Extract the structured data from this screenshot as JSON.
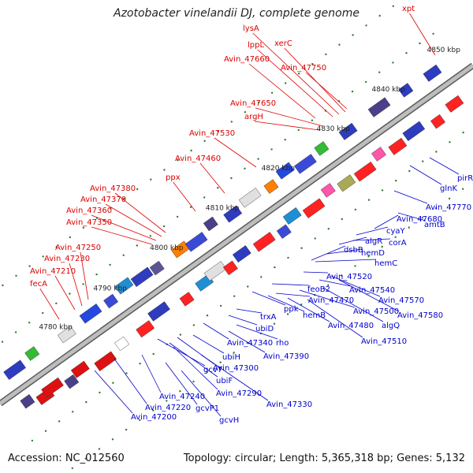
{
  "title": "Azotobacter vinelandii DJ, complete genome",
  "accession": "Accession: NC_012560",
  "summary": "Topology: circular; Length: 5,365,318 bp; Genes: 5,132",
  "colors": {
    "upper_label": "#dd0000",
    "lower_label": "#0000cc",
    "backbone": "#8c8c8c",
    "tick": "#2d7a2d"
  },
  "scale_labels": [
    "4780 kbp",
    "4790 kbp",
    "4800 kbp",
    "4810 kbp",
    "4820 kbp",
    "4830 kbp",
    "4840 kbp",
    "4850 kbp"
  ],
  "upper_genes": [
    "fecA",
    "Avin_47210",
    "Avin_47230",
    "Avin_47250",
    "Avin_47350",
    "Avin_47360",
    "Avin_47370",
    "Avin_47380",
    "ppx",
    "Avin_47460",
    "Avin_47530",
    "argH",
    "Avin_47650",
    "Avin_47660",
    "lppL",
    "lysA",
    "xerC",
    "Avin_47750",
    "xpt"
  ],
  "lower_genes": [
    "Avin_47200",
    "gcvH",
    "Avin_47220",
    "Avin_47240",
    "gcvP1",
    "Avin_47330",
    "Avin_47290",
    "ubiF",
    "gcvT",
    "Avin_47300",
    "ubiH",
    "Avin_47390",
    "Avin_47340",
    "rho",
    "ubiD",
    "trxA",
    "ppk",
    "hemB",
    "Avin_47470",
    "Avin_47480",
    "Avin_47510",
    "feoB2",
    "Avin_47500",
    "algQ",
    "Avin_47580",
    "Avin_47520",
    "Avin_47540",
    "Avin_47570",
    "hemC",
    "dsbB",
    "hemD",
    "algR",
    "corA",
    "cyaY",
    "Avin_47680",
    "amtB",
    "Avin_47770",
    "glnK",
    "pirR"
  ]
}
